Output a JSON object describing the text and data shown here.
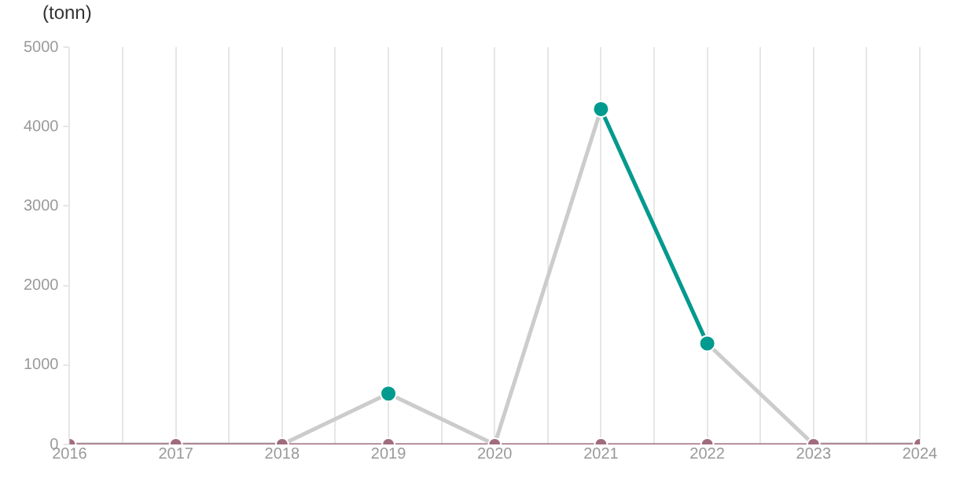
{
  "chart_data": {
    "type": "line",
    "ylabel": "(tonn)",
    "x": [
      2016,
      2017,
      2018,
      2019,
      2020,
      2021,
      2022,
      2023,
      2024
    ],
    "series": [
      {
        "color": "#cccccc",
        "marker": "none",
        "values": [
          0,
          0,
          0,
          640,
          0,
          4220,
          1270,
          0,
          0
        ]
      },
      {
        "color": "#a06c7c",
        "marker": "circle",
        "values": [
          0,
          0,
          0,
          0,
          0,
          0,
          0,
          0,
          0
        ]
      },
      {
        "color": "#009a8e",
        "marker": "circle",
        "values": [
          null,
          null,
          null,
          640,
          null,
          4220,
          1270,
          null,
          null
        ]
      }
    ],
    "xlim": [
      2016,
      2024
    ],
    "xticks": [
      2016,
      {
        "value": 2016.5,
        "label": null
      },
      2017,
      {
        "value": 2017.5,
        "label": null
      },
      2018,
      {
        "value": 2018.5,
        "label": null
      },
      2019,
      {
        "value": 2019.5,
        "label": null
      },
      2020,
      {
        "value": 2020.5,
        "label": null
      },
      2021,
      {
        "value": 2021.5,
        "label": null
      },
      2022,
      {
        "value": 2022.5,
        "label": null
      },
      2023,
      {
        "value": 2023.5,
        "label": null
      },
      2024
    ],
    "ylim": [
      0,
      5000
    ],
    "yticks": [
      0,
      1000,
      2000,
      3000,
      4000,
      5000
    ],
    "grid": "x",
    "legend": false,
    "line_style": "solid"
  }
}
